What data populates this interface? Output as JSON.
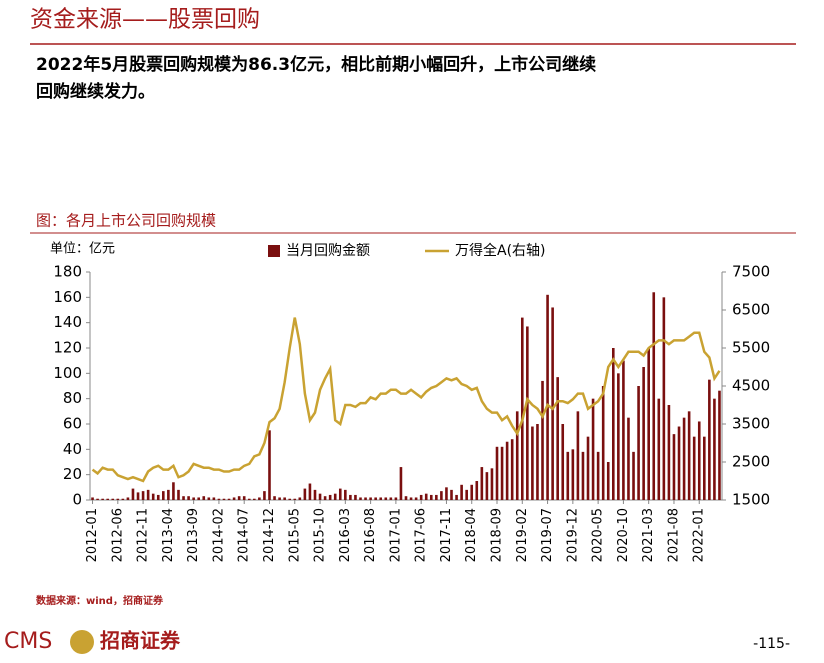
{
  "header": {
    "title": "资金来源——股票回购"
  },
  "body": {
    "lines": [
      "2022年5月股票回购规模为86.3亿元，相比前期小幅回升，上市公司继续",
      "回购继续发力。"
    ]
  },
  "source": "数据来源：wind，招商证券",
  "footer": {
    "logo": "CMS",
    "company": "招商证券",
    "page": "-115-"
  },
  "chart_data": {
    "type": "bar",
    "title": "图：各月上市公司回购规模",
    "y_label": "单位：亿元",
    "categories": [
      "2012-01",
      null,
      null,
      null,
      null,
      "2012-06",
      null,
      null,
      null,
      null,
      "2012-11",
      null,
      null,
      null,
      null,
      "2013-04",
      null,
      null,
      null,
      null,
      "2013-09",
      null,
      null,
      null,
      null,
      "2014-02",
      null,
      null,
      null,
      null,
      "2014-07",
      null,
      null,
      null,
      null,
      "2014-12",
      null,
      null,
      null,
      null,
      "2015-05",
      null,
      null,
      null,
      null,
      "2015-10",
      null,
      null,
      null,
      null,
      "2016-03",
      null,
      null,
      null,
      null,
      "2016-08",
      null,
      null,
      null,
      null,
      "2017-01",
      null,
      null,
      null,
      null,
      "2017-06",
      null,
      null,
      null,
      null,
      "2017-11",
      null,
      null,
      null,
      null,
      "2018-04",
      null,
      null,
      null,
      null,
      "2018-09",
      null,
      null,
      null,
      null,
      "2019-02",
      null,
      null,
      null,
      null,
      "2019-07",
      null,
      null,
      null,
      null,
      "2019-12",
      null,
      null,
      null,
      null,
      "2020-05",
      null,
      null,
      null,
      null,
      "2020-10",
      null,
      null,
      null,
      null,
      "2021-03",
      null,
      null,
      null,
      null,
      "2021-08",
      null,
      null,
      null,
      null,
      "2022-01",
      null,
      null,
      null,
      null
    ],
    "series": [
      {
        "name": "当月回购金额",
        "type": "bar",
        "color": "#7a0f0f",
        "values": [
          2,
          1,
          1,
          1,
          1,
          1,
          1,
          2,
          9,
          6,
          7,
          8,
          5,
          4,
          7,
          8,
          14,
          8,
          3,
          3,
          2,
          2,
          3,
          2,
          2,
          1,
          1,
          1,
          2,
          3,
          3,
          1,
          1,
          2,
          7,
          55,
          3,
          2,
          2,
          1,
          1,
          2,
          9,
          13,
          8,
          5,
          3,
          4,
          5,
          9,
          8,
          4,
          4,
          2,
          2,
          2,
          2,
          2,
          2,
          2,
          2,
          26,
          3,
          2,
          2,
          4,
          5,
          4,
          4,
          7,
          10,
          8,
          4,
          12,
          8,
          12,
          15,
          26,
          22,
          25,
          42,
          42,
          46,
          48,
          70,
          144,
          137,
          58,
          60,
          94,
          162,
          152,
          97,
          60,
          38,
          40,
          70,
          38,
          50,
          80,
          38,
          90,
          30,
          120,
          100,
          110,
          65,
          38,
          90,
          105,
          120,
          164,
          80,
          160,
          75,
          52,
          58,
          65,
          70,
          50,
          62,
          50,
          95,
          80,
          86.3
        ]
      },
      {
        "name": "万得全A(右轴)",
        "type": "line",
        "color": "#c9a232",
        "axis": "y2",
        "values": [
          2300,
          2200,
          2350,
          2300,
          2300,
          2150,
          2100,
          2050,
          2100,
          2050,
          2000,
          2250,
          2350,
          2400,
          2300,
          2300,
          2400,
          2100,
          2150,
          2250,
          2450,
          2400,
          2350,
          2350,
          2300,
          2300,
          2250,
          2250,
          2300,
          2300,
          2400,
          2450,
          2650,
          2700,
          3000,
          3550,
          3650,
          3900,
          4600,
          5500,
          6300,
          5600,
          4300,
          3600,
          3800,
          4400,
          4700,
          4950,
          3600,
          3500,
          4000,
          4000,
          3950,
          4050,
          4050,
          4200,
          4150,
          4300,
          4300,
          4400,
          4400,
          4300,
          4300,
          4400,
          4300,
          4200,
          4350,
          4450,
          4500,
          4600,
          4700,
          4650,
          4700,
          4550,
          4500,
          4400,
          4450,
          4100,
          3900,
          3800,
          3800,
          3600,
          3700,
          3450,
          3250,
          3600,
          4150,
          4000,
          3900,
          3700,
          4000,
          3900,
          4100,
          4100,
          4050,
          4150,
          4300,
          4300,
          3900,
          4000,
          4100,
          4300,
          5000,
          5200,
          5000,
          5200,
          5400,
          5400,
          5400,
          5300,
          5500,
          5600,
          5700,
          5700,
          5600,
          5700,
          5700,
          5700,
          5800,
          5900,
          5900,
          5400,
          5250,
          4700,
          4900
        ]
      }
    ],
    "ylim": [
      0,
      180
    ],
    "yticks": [
      0,
      20,
      40,
      60,
      80,
      100,
      120,
      140,
      160,
      180
    ],
    "y2lim": [
      1500,
      7500
    ],
    "y2ticks": [
      1500,
      2500,
      3500,
      4500,
      5500,
      6500,
      7500
    ]
  }
}
